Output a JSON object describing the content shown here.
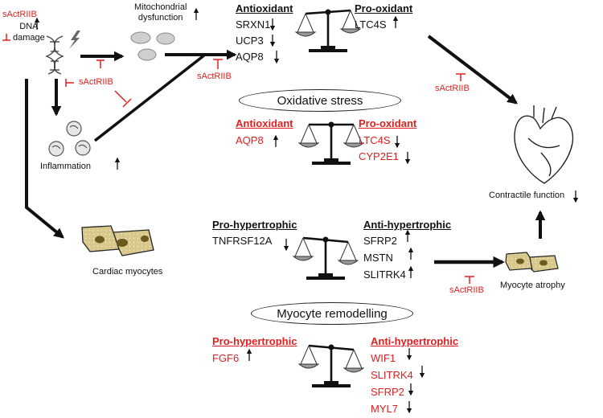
{
  "colors": {
    "red": "#e02020",
    "black": "#111111",
    "cell": "#d8c88c",
    "nucleus": "#6b5a1e"
  },
  "inhibitor_label": "sActRIIB",
  "inhibitor_labels": [
    "sActRIIB",
    "sActRIIB",
    "sActRIIB",
    "sActRIIB",
    "sActRIIB"
  ],
  "nodes": {
    "dna_damage": [
      "DNA",
      "damage"
    ],
    "mitochondrial_dysfunction": [
      "Mitochondrial",
      "dysfunction"
    ],
    "inflammation": "Inflammation",
    "cardiac_myocytes": "Cardiac myocytes",
    "contractile_function": "Contractile function",
    "myocyte_atrophy": "Myocyte atrophy"
  },
  "boxes": {
    "oxidative_stress": "Oxidative stress",
    "myocyte_remodelling": "Myocyte remodelling"
  },
  "baseline_oxidative": {
    "left_heading": "Antioxidant",
    "left_genes": [
      "SRXN1",
      "UCP3",
      "AQP8"
    ],
    "right_heading": "Pro-oxidant",
    "right_genes": [
      "LTC4S"
    ]
  },
  "treated_oxidative": {
    "left_heading": "Antioxidant",
    "left_genes": [
      "AQP8"
    ],
    "right_heading": "Pro-oxidant",
    "right_genes": [
      "LTC4S",
      "CYP2E1"
    ]
  },
  "baseline_hypertrophy": {
    "left_heading": "Pro-hypertrophic",
    "left_genes": [
      "TNFRSF12A"
    ],
    "right_heading": "Anti-hypertrophic",
    "right_genes": [
      "SFRP2",
      "MSTN",
      "SLITRK4"
    ]
  },
  "treated_hypertrophy": {
    "left_heading": "Pro-hypertrophic",
    "left_genes": [
      "FGF6"
    ],
    "right_heading": "Anti-hypertrophic",
    "right_genes": [
      "WIF1",
      "SLITRK4",
      "SFRP2",
      "MYL7"
    ]
  }
}
